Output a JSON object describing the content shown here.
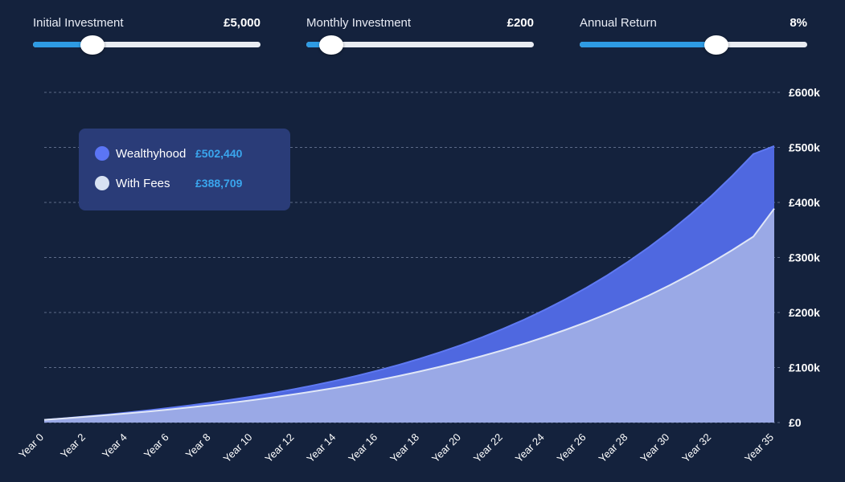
{
  "controls": {
    "initial": {
      "label": "Initial Investment",
      "value": "£5,000",
      "fraction": 0.26
    },
    "monthly": {
      "label": "Monthly Investment",
      "value": "£200",
      "fraction": 0.11
    },
    "annual": {
      "label": "Annual Return",
      "value": "8%",
      "fraction": 0.6
    },
    "track_color": "#e9ecf2",
    "fill_color": "#2e9be3"
  },
  "tooltip": {
    "series": [
      {
        "name": "Wealthyhood",
        "value": "£502,440",
        "color": "#5b75f5"
      },
      {
        "name": "With Fees",
        "value": "£388,709",
        "color": "#d8e2f2"
      }
    ]
  },
  "chart_data": {
    "type": "area",
    "x": [
      0,
      1,
      2,
      3,
      4,
      5,
      6,
      7,
      8,
      9,
      10,
      11,
      12,
      13,
      14,
      15,
      16,
      17,
      18,
      19,
      20,
      21,
      22,
      23,
      24,
      25,
      26,
      27,
      28,
      29,
      30,
      31,
      32,
      33,
      34,
      35
    ],
    "x_tick_labels": [
      "Year 0",
      "Year 2",
      "Year 4",
      "Year 6",
      "Year 8",
      "Year 10",
      "Year 12",
      "Year 14",
      "Year 16",
      "Year 18",
      "Year 20",
      "Year 22",
      "Year 24",
      "Year 26",
      "Year 28",
      "Year 30",
      "Year 32",
      "Year 35"
    ],
    "x_tick_values": [
      0,
      2,
      4,
      6,
      8,
      10,
      12,
      14,
      16,
      18,
      20,
      22,
      24,
      26,
      28,
      30,
      32,
      35
    ],
    "y_tick_labels": [
      "£0",
      "£100k",
      "£200k",
      "£300k",
      "£400k",
      "£500k",
      "£600k"
    ],
    "y_tick_values": [
      0,
      100000,
      200000,
      300000,
      400000,
      500000,
      600000
    ],
    "ylim": [
      0,
      600000
    ],
    "grid": true,
    "grid_style": "dashed",
    "series": [
      {
        "name": "Wealthyhood",
        "color": "#4f68e0",
        "values": [
          5000,
          7900,
          11100,
          14500,
          18200,
          22200,
          26500,
          31200,
          36200,
          41700,
          47500,
          53900,
          60800,
          68300,
          76300,
          85100,
          94600,
          104800,
          115900,
          128000,
          141000,
          155100,
          170400,
          186900,
          204800,
          224200,
          245100,
          267800,
          292400,
          318900,
          347600,
          378700,
          412300,
          448700,
          488000,
          502440
        ]
      },
      {
        "name": "With Fees",
        "color": "#9aa9e6",
        "line_color": "#e0e7f7",
        "values": [
          5000,
          7700,
          10600,
          13600,
          16800,
          20200,
          23800,
          27700,
          31800,
          36200,
          40900,
          46000,
          51400,
          57200,
          63400,
          70000,
          77100,
          84700,
          92900,
          101600,
          111000,
          121000,
          131700,
          143200,
          155500,
          168600,
          182700,
          197800,
          214000,
          231300,
          249800,
          269700,
          290900,
          313700,
          338000,
          388709
        ]
      }
    ]
  }
}
